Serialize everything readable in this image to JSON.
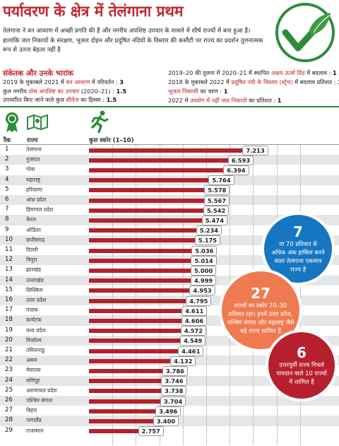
{
  "title": "पर्यावरण के क्षेत्र में तेलंगाना प्रथम",
  "intro": "तेलंगाना ने वन आवरण में अच्छी प्रगति की है और नगरीय अपशिष्ट उपचार के मामले में शीर्ष राज्यों में बना हुआ है। हालांकि जल निकायों के संरक्षण, भूजल दोहन और प्रदूषित नदियों के विस्तार की कसौटी पर राज्य का प्रदर्शन तुलनात्मक रूप से उतना बेहतर नहीं है",
  "indicators_heading": "संकेतक और उनके भारांक",
  "indicators_left": [
    {
      "pre": "2019 के मुकाबले 2021 में ",
      "hl": "वन आवरण",
      "post": " में परिवर्तन : ",
      "val": "3"
    },
    {
      "pre": "कुल नगरीय ",
      "hl": "ठोस अपशिष्ट का उपचार",
      "post": " (2020–21) : ",
      "val": "1.5"
    },
    {
      "pre": "उपचारित किए जाने वाले कुल ",
      "hl": "सीवेज",
      "post": " का हिस्सा : ",
      "val": "1.5"
    }
  ],
  "indicators_right": [
    {
      "pre": "2019–20 की तुलना में 2020–21 में स्थापित ",
      "hl": "अक्षय ऊर्जा ग्रिड",
      "post": " में बदलाव : ",
      "val": "1"
    },
    {
      "pre": "2018 के मुकाबले 2022 में ",
      "hl": "प्रदूषित नदी के विस्तार (स्ट्रेच)",
      "post": " में बदलाव प्रतिशत : ",
      "val": "1"
    },
    {
      "pre": "",
      "hl": "भूजल निकासी",
      "post": " का चरण : ",
      "val": "1"
    },
    {
      "pre": "2022 में ",
      "hl": "उपयोग में नहीं जल निकायों",
      "post": " का प्रतिशत : ",
      "val": "1"
    }
  ],
  "table_headers": {
    "rank": "रैंक",
    "state": "राज्य",
    "score": "कुल स्कोर (1–10)"
  },
  "colors": {
    "title": "#c2262e",
    "bar": "#b1222c",
    "accent_green": "#2e8b3d",
    "bubble_blue": "#1676c1",
    "bubble_orange": "#f07a4f",
    "bubble_red": "#b81f2e"
  },
  "icons": [
    "award-ribbon-icon",
    "map-icon",
    "running-person-icon",
    "check-mark-leaf-icon"
  ],
  "chart_data": {
    "type": "bar",
    "orientation": "horizontal",
    "xlim": [
      0,
      10
    ],
    "ranks": [
      "1",
      "2",
      "3",
      "4",
      "5",
      "6",
      "7",
      "8",
      "9",
      "10",
      "11",
      "12",
      "13",
      "14",
      "15",
      "16",
      "17",
      "18",
      "19",
      "20",
      "21",
      "22",
      "23",
      "24",
      "25",
      "26",
      "27",
      "28",
      "29"
    ],
    "categories": [
      "तेलंगाना",
      "गुजरात",
      "गोवा",
      "महाराष्ट्र",
      "हरियाणा",
      "आंध्र प्रदेश",
      "हिमाचल प्रदेश",
      "केरल",
      "ओडिशा",
      "छत्तीसगढ़",
      "दिल्ली",
      "त्रिपुरा",
      "झारखंड",
      "उत्तराखंड",
      "सिक्किम",
      "उत्तर प्रदेश",
      "पंजाब",
      "कर्नाटक",
      "मध्य प्रदेश",
      "मिजोरम",
      "तमिलनाडु",
      "असम",
      "मेघालय",
      "मणिपुर",
      "अरुणाचल प्रदेश",
      "पश्चिम बंगाल",
      "बिहार",
      "नागालैंड",
      "राजस्थान"
    ],
    "values": [
      7.213,
      6.593,
      6.394,
      5.764,
      5.578,
      5.567,
      5.542,
      5.474,
      5.234,
      5.175,
      5.036,
      5.014,
      5.0,
      4.999,
      4.953,
      4.795,
      4.611,
      4.606,
      4.572,
      4.549,
      4.461,
      4.132,
      3.786,
      3.746,
      3.738,
      3.704,
      3.496,
      3.4,
      2.757
    ],
    "labels": [
      "7.213",
      "6.593",
      "6.394",
      "5.764",
      "5.578",
      "5.567",
      "5.542",
      "5.474",
      "5.234",
      "5.175",
      "5.036",
      "5.014",
      "5.000",
      "4.999",
      "4.953",
      "4.795",
      "4.611",
      "4.606",
      "4.572",
      "4.549",
      "4.461",
      "4.132",
      "3.786",
      "3.746",
      "3.738",
      "3.704",
      "3.496",
      "3.400",
      "2.757"
    ]
  },
  "callouts": [
    {
      "big": "7",
      "text": "या 70 प्रतिशत से अधिक अंक हासिल करने वाला तेलंगाना एकमात्र राज्य है"
    },
    {
      "big": "27",
      "text": "राज्यों का स्कोर 70–30 प्रतिशत रहा। इनमें उत्तर प्रदेश, पश्चिम बंगाल और महाराष्ट्र जैसे बड़े राज्य शामिल हैं"
    },
    {
      "big": "6",
      "text": "उत्तरपूर्वी राज्य निचले पायदान वाले 10 राज्यों में शामिल हैं"
    }
  ]
}
